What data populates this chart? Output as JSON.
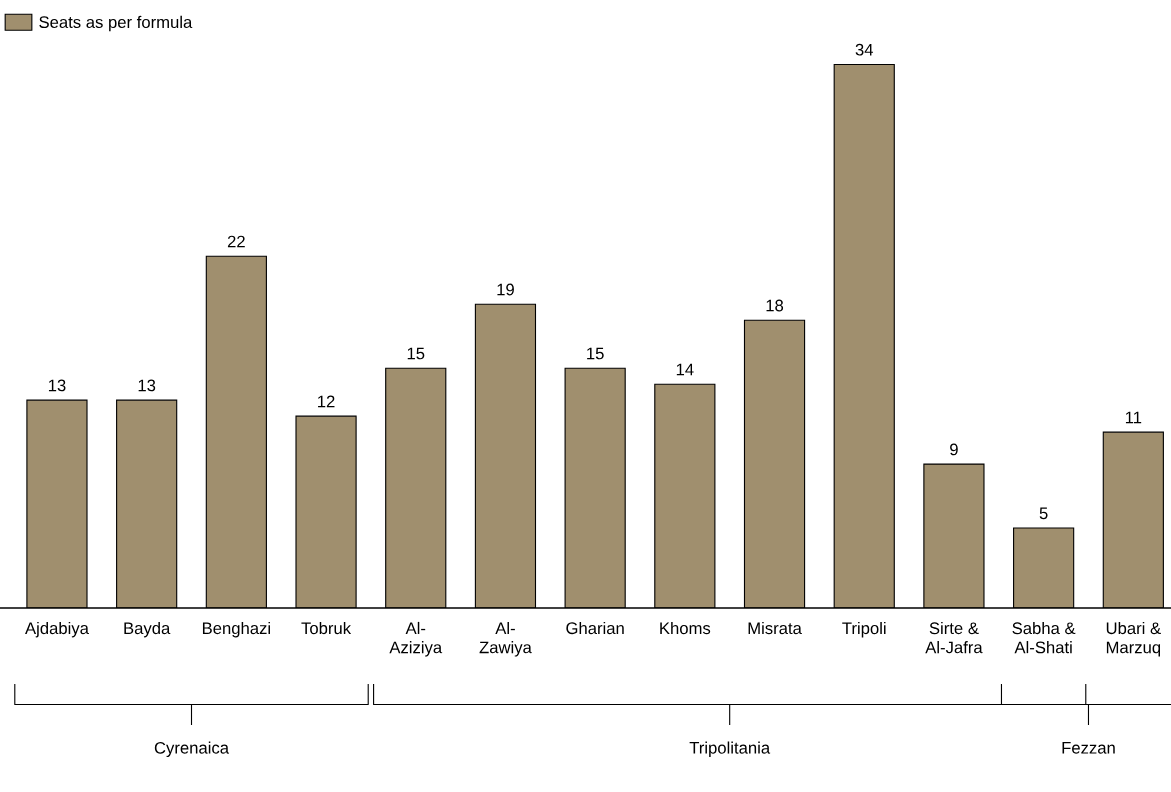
{
  "chart_data": {
    "type": "bar",
    "categories": [
      "Ajdabiya",
      "Bayda",
      "Benghazi",
      "Tobruk",
      "Al-\nAziziya",
      "Al-\nZawiya",
      "Gharian",
      "Khoms",
      "Misrata",
      "Tripoli",
      "Sirte &\nAl-Jafra",
      "Sabha &\nAl-Shati",
      "Ubari &\nMarzuq"
    ],
    "series": [
      {
        "name": "Seats as per formula",
        "color": "#a08f6e",
        "values": [
          13,
          13,
          22,
          12,
          15,
          19,
          15,
          14,
          18,
          34,
          9,
          5,
          11
        ]
      }
    ],
    "data_labels": true,
    "legend": "top left",
    "grid": false,
    "annotations": [
      "Cyrenaica",
      "Tripolitania",
      "Fezzan"
    ]
  }
}
